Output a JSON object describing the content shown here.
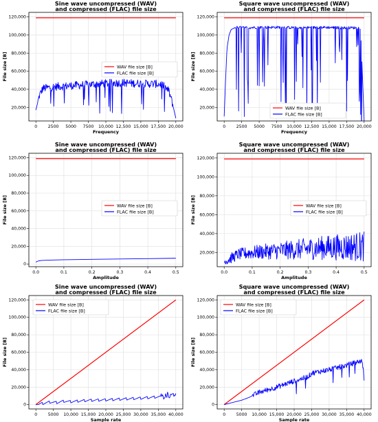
{
  "charts": [
    {
      "title_line1": "Sine wave uncompressed (WAV)",
      "title_line2": "and compressed (FLAC) file size",
      "xlabel": "Frequency",
      "ylabel": "File size [B]",
      "legend": [
        "WAV file size [B]",
        "FLAC file size [B]"
      ],
      "x_ticks": [
        "0",
        "2500",
        "5000",
        "7500",
        "10,000",
        "12,500",
        "15,000",
        "17,500",
        "20,000"
      ],
      "y_ticks": [
        "20,000",
        "40,000",
        "60,000",
        "80,000",
        "100,000",
        "120,000"
      ]
    },
    {
      "title_line1": "Square wave uncompressed (WAV)",
      "title_line2": "and compressed (FLAC) file size",
      "xlabel": "Frequency",
      "ylabel": "File size [B]",
      "legend": [
        "WAV file size [B]",
        "FLAC file size [B]"
      ],
      "x_ticks": [
        "0",
        "2500",
        "5000",
        "7500",
        "10,000",
        "12,500",
        "15,000",
        "17,500",
        "20,000"
      ],
      "y_ticks": [
        "20,000",
        "40,000",
        "60,000",
        "80,000",
        "100,000",
        "120,000"
      ]
    },
    {
      "title_line1": "Sine wave uncompressed (WAV)",
      "title_line2": "and compressed (FLAC) file size",
      "xlabel": "Amplitude",
      "ylabel": "File size [B]",
      "legend": [
        "WAV file size [B]",
        "FLAC file size [B]"
      ],
      "x_ticks": [
        "0.0",
        "0.1",
        "0.2",
        "0.3",
        "0.4",
        "0.5"
      ],
      "y_ticks": [
        "0",
        "20,000",
        "40,000",
        "60,000",
        "80,000",
        "100,000",
        "120,000"
      ]
    },
    {
      "title_line1": "Square wave uncompressed (WAV)",
      "title_line2": "and compressed (FLAC) file size",
      "xlabel": "Amplitude",
      "ylabel": "File size [B]",
      "legend": [
        "WAV file size [B]",
        "FLAC file size [B]"
      ],
      "x_ticks": [
        "0.0",
        "0.1",
        "0.2",
        "0.3",
        "0.4",
        "0.5"
      ],
      "y_ticks": [
        "20,000",
        "40,000",
        "60,000",
        "80,000",
        "100,000",
        "120,000"
      ]
    },
    {
      "title_line1": "Sine wave uncompressed (WAV)",
      "title_line2": "and compressed (FLAC) file size",
      "xlabel": "Sample rate",
      "ylabel": "File size [B]",
      "legend": [
        "WAV file size [B]",
        "FLAC file size [B]"
      ],
      "x_ticks": [
        "0",
        "5000",
        "10,000",
        "15,000",
        "20,000",
        "25,000",
        "30,000",
        "35,000",
        "40,000"
      ],
      "y_ticks": [
        "0",
        "20,000",
        "40,000",
        "60,000",
        "80,000",
        "100,000",
        "120,000"
      ]
    },
    {
      "title_line1": "Square wave uncompressed (WAV)",
      "title_line2": "and compressed (FLAC) file size",
      "xlabel": "Sample rate",
      "ylabel": "File size [B]",
      "legend": [
        "WAV file size [B]",
        "FLAC file size [B]"
      ],
      "x_ticks": [
        "0",
        "5000",
        "10,000",
        "15,000",
        "20,000",
        "25,000",
        "30,000",
        "35,000",
        "40,000"
      ],
      "y_ticks": [
        "0",
        "20,000",
        "40,000",
        "60,000",
        "80,000",
        "100,000",
        "120,000"
      ]
    }
  ],
  "colors": {
    "wav": "#ff0000",
    "flac": "#0000ff",
    "grid": "#dddddd",
    "axis": "#000000"
  },
  "chart_data": [
    {
      "type": "line",
      "xlabel": "Frequency",
      "ylabel": "File size [B]",
      "xlim": [
        -1000,
        21000
      ],
      "ylim": [
        5000,
        125000
      ],
      "grid": true,
      "legend_position": "center-right",
      "series": [
        {
          "name": "WAV file size [B]",
          "x": [
            0,
            20000
          ],
          "y": [
            119000,
            119000
          ]
        },
        {
          "name": "FLAC file size [B]",
          "x": [
            0,
            500,
            1000,
            2000,
            3000,
            4000,
            5000,
            6000,
            7000,
            8000,
            9000,
            10000,
            11000,
            12000,
            13000,
            14000,
            15000,
            16000,
            17000,
            18000,
            19000,
            19500,
            20000
          ],
          "y": [
            17000,
            33000,
            41000,
            42000,
            43000,
            43500,
            44000,
            44500,
            45000,
            45500,
            46000,
            46500,
            47000,
            47000,
            47000,
            46500,
            46500,
            46000,
            46000,
            45500,
            38000,
            25000,
            8000
          ]
        }
      ]
    },
    {
      "type": "line",
      "xlabel": "Frequency",
      "ylabel": "File size [B]",
      "xlim": [
        -1000,
        21000
      ],
      "ylim": [
        5000,
        125000
      ],
      "grid": true,
      "legend_position": "bottom-right",
      "series": [
        {
          "name": "WAV file size [B]",
          "x": [
            0,
            20000
          ],
          "y": [
            119000,
            119000
          ]
        },
        {
          "name": "FLAC file size [B]",
          "x": [
            0,
            200,
            400,
            700,
            1000,
            1500,
            2000,
            3000,
            5000,
            8000,
            11000,
            14000,
            17000,
            19500,
            20000
          ],
          "y": [
            10000,
            50000,
            85000,
            100000,
            106000,
            108000,
            108500,
            108000,
            108500,
            108500,
            108000,
            108500,
            108000,
            108000,
            5000
          ]
        }
      ]
    },
    {
      "type": "line",
      "xlabel": "Amplitude",
      "ylabel": "File size [B]",
      "xlim": [
        -0.025,
        0.525
      ],
      "ylim": [
        -3000,
        125000
      ],
      "grid": true,
      "legend_position": "center-right",
      "series": [
        {
          "name": "WAV file size [B]",
          "x": [
            0,
            0.5
          ],
          "y": [
            119000,
            119000
          ]
        },
        {
          "name": "FLAC file size [B]",
          "x": [
            0,
            0.005,
            0.01,
            0.02,
            0.05,
            0.1,
            0.2,
            0.3,
            0.4,
            0.5
          ],
          "y": [
            2000,
            3000,
            3500,
            4000,
            4400,
            4800,
            5300,
            5700,
            6100,
            6500
          ]
        }
      ]
    },
    {
      "type": "line",
      "xlabel": "Amplitude",
      "ylabel": "File size [B]",
      "xlim": [
        -0.025,
        0.525
      ],
      "ylim": [
        5000,
        125000
      ],
      "grid": true,
      "legend_position": "center-right",
      "series": [
        {
          "name": "WAV file size [B]",
          "x": [
            0,
            0.5
          ],
          "y": [
            119000,
            119000
          ]
        },
        {
          "name": "FLAC file size [B]",
          "x": [
            0,
            0.05,
            0.1,
            0.15,
            0.2,
            0.25,
            0.3,
            0.35,
            0.4,
            0.45,
            0.5
          ],
          "y": [
            10000,
            18000,
            20000,
            21000,
            22000,
            23000,
            24000,
            25000,
            25500,
            26000,
            26500
          ]
        }
      ]
    },
    {
      "type": "line",
      "xlabel": "Sample rate",
      "ylabel": "File size [B]",
      "xlim": [
        -2000,
        42000
      ],
      "ylim": [
        -5000,
        125000
      ],
      "grid": true,
      "legend_position": "top-left",
      "series": [
        {
          "name": "WAV file size [B]",
          "x": [
            0,
            40000
          ],
          "y": [
            0,
            120000
          ]
        },
        {
          "name": "FLAC file size [B]",
          "x": [
            0,
            2000,
            4000,
            6000,
            8000,
            10000,
            15000,
            20000,
            25000,
            30000,
            35000,
            38000,
            40000
          ],
          "y": [
            0,
            1500,
            3000,
            2500,
            4000,
            3500,
            5000,
            5500,
            6500,
            7500,
            9000,
            10000,
            12000
          ]
        }
      ]
    },
    {
      "type": "line",
      "xlabel": "Sample rate",
      "ylabel": "File size [B]",
      "xlim": [
        -2000,
        42000
      ],
      "ylim": [
        -5000,
        125000
      ],
      "grid": true,
      "legend_position": "top-left",
      "series": [
        {
          "name": "WAV file size [B]",
          "x": [
            0,
            40000
          ],
          "y": [
            0,
            120000
          ]
        },
        {
          "name": "FLAC file size [B]",
          "x": [
            0,
            3000,
            5000,
            7000,
            10000,
            15000,
            20000,
            24000,
            25000,
            30000,
            35000,
            39000,
            39500,
            40000
          ],
          "y": [
            0,
            3000,
            5000,
            8000,
            14000,
            20000,
            27000,
            32000,
            36000,
            40000,
            45000,
            50000,
            49000,
            30000
          ]
        }
      ]
    }
  ]
}
